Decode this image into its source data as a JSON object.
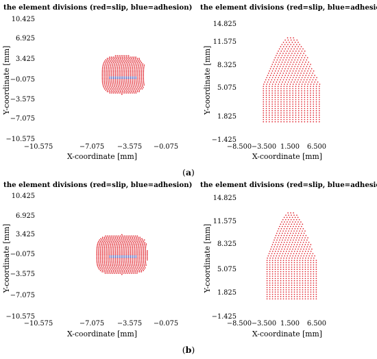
{
  "chart_data": [
    {
      "id": "a-left",
      "type": "scatter",
      "title": "the element divisions (red=slip, blue=adhesion)",
      "xlabel": "X-coordinate [mm]",
      "ylabel": "Y-coordinate [mm]",
      "xticks": [
        "−10.575",
        "−7.075",
        "−3.575",
        "−0.075"
      ],
      "yticks": [
        "10.425",
        "6.925",
        "3.425",
        "−0.075",
        "−3.575",
        "−7.075",
        "−10.575"
      ],
      "xlim": [
        -10.575,
        -0.075
      ],
      "ylim": [
        -10.575,
        10.425
      ],
      "colors": {
        "slip": "#e0202a",
        "adhesion": "#2a3aa8"
      },
      "shape": {
        "kind": "blob",
        "cx": -5.1,
        "cy": 0.55,
        "rx_left": 2.3,
        "rx_right": 2.75,
        "ry_top": 3.45,
        "ry_bottom": 3.25,
        "power": 3.2,
        "dx": 0.22,
        "dy": 0.23,
        "adhesion_y": [
          -0.1,
          0.35
        ],
        "adhesion_x": [
          -6.6,
          -3.4
        ]
      }
    },
    {
      "id": "a-right",
      "type": "scatter",
      "title": "the element divisions (red=slip, blue=adhesion)",
      "xlabel": "X-coordinate [mm]",
      "ylabel": "Y-coordinate [mm]",
      "xticks": [
        "−8.500",
        "−3.500",
        "1.500",
        "6.500"
      ],
      "yticks": [
        "14.825",
        "11.575",
        "8.325",
        "5.075",
        "1.825",
        "−1.425"
      ],
      "xlim": [
        -8.5,
        9.5
      ],
      "ylim": [
        -1.425,
        14.825
      ],
      "colors": {
        "slip": "#e0202a",
        "adhesion": "#2a3aa8"
      },
      "shape": {
        "kind": "bell",
        "cx": 1.5,
        "y0": 1.0,
        "ytop": 13.0,
        "halfwidth": 5.4,
        "sigma": 4.15,
        "dx": 0.56,
        "dy": 0.31
      }
    },
    {
      "id": "b-left",
      "type": "scatter",
      "title": "the element divisions (red=slip, blue=adhesion)",
      "xlabel": "X-coordinate [mm]",
      "ylabel": "Y-coordinate [mm]",
      "xticks": [
        "−10.575",
        "−7.075",
        "−3.575",
        "−0.075"
      ],
      "yticks": [
        "10.425",
        "6.925",
        "3.425",
        "−0.075",
        "−3.575",
        "−7.075",
        "−10.575"
      ],
      "xlim": [
        -10.575,
        -0.075
      ],
      "ylim": [
        -10.575,
        10.425
      ],
      "colors": {
        "slip": "#e0202a",
        "adhesion": "#2a3aa8"
      },
      "shape": {
        "kind": "blob",
        "cx": -5.1,
        "cy": 0.0,
        "rx_left": 2.95,
        "rx_right": 3.0,
        "ry_top": 3.6,
        "ry_bottom": 3.3,
        "power": 3.6,
        "dx": 0.22,
        "dy": 0.23,
        "adhesion_y": [
          -0.35,
          0.0
        ],
        "adhesion_x": [
          -6.6,
          -3.4
        ]
      }
    },
    {
      "id": "b-right",
      "type": "scatter",
      "title": "the element divisions (red=slip, blue=adhesion)",
      "xlabel": "X-coordinate [mm]",
      "ylabel": "Y-coordinate [mm]",
      "xticks": [
        "−8.500",
        "−3.500",
        "1.500",
        "6.500"
      ],
      "yticks": [
        "14.825",
        "11.575",
        "8.325",
        "5.075",
        "1.825",
        "−1.425"
      ],
      "xlim": [
        -8.5,
        9.5
      ],
      "ylim": [
        -1.425,
        14.825
      ],
      "colors": {
        "slip": "#e0202a",
        "adhesion": "#2a3aa8"
      },
      "shape": {
        "kind": "bell",
        "cx": 1.5,
        "y0": 1.0,
        "ytop": 13.0,
        "halfwidth": 4.7,
        "sigma": 3.75,
        "dx": 0.52,
        "dy": 0.31
      }
    }
  ],
  "captions": {
    "a": {
      "open": "(",
      "letter": "a",
      "close": ")"
    },
    "b": {
      "open": "(",
      "letter": "b",
      "close": ")"
    }
  }
}
